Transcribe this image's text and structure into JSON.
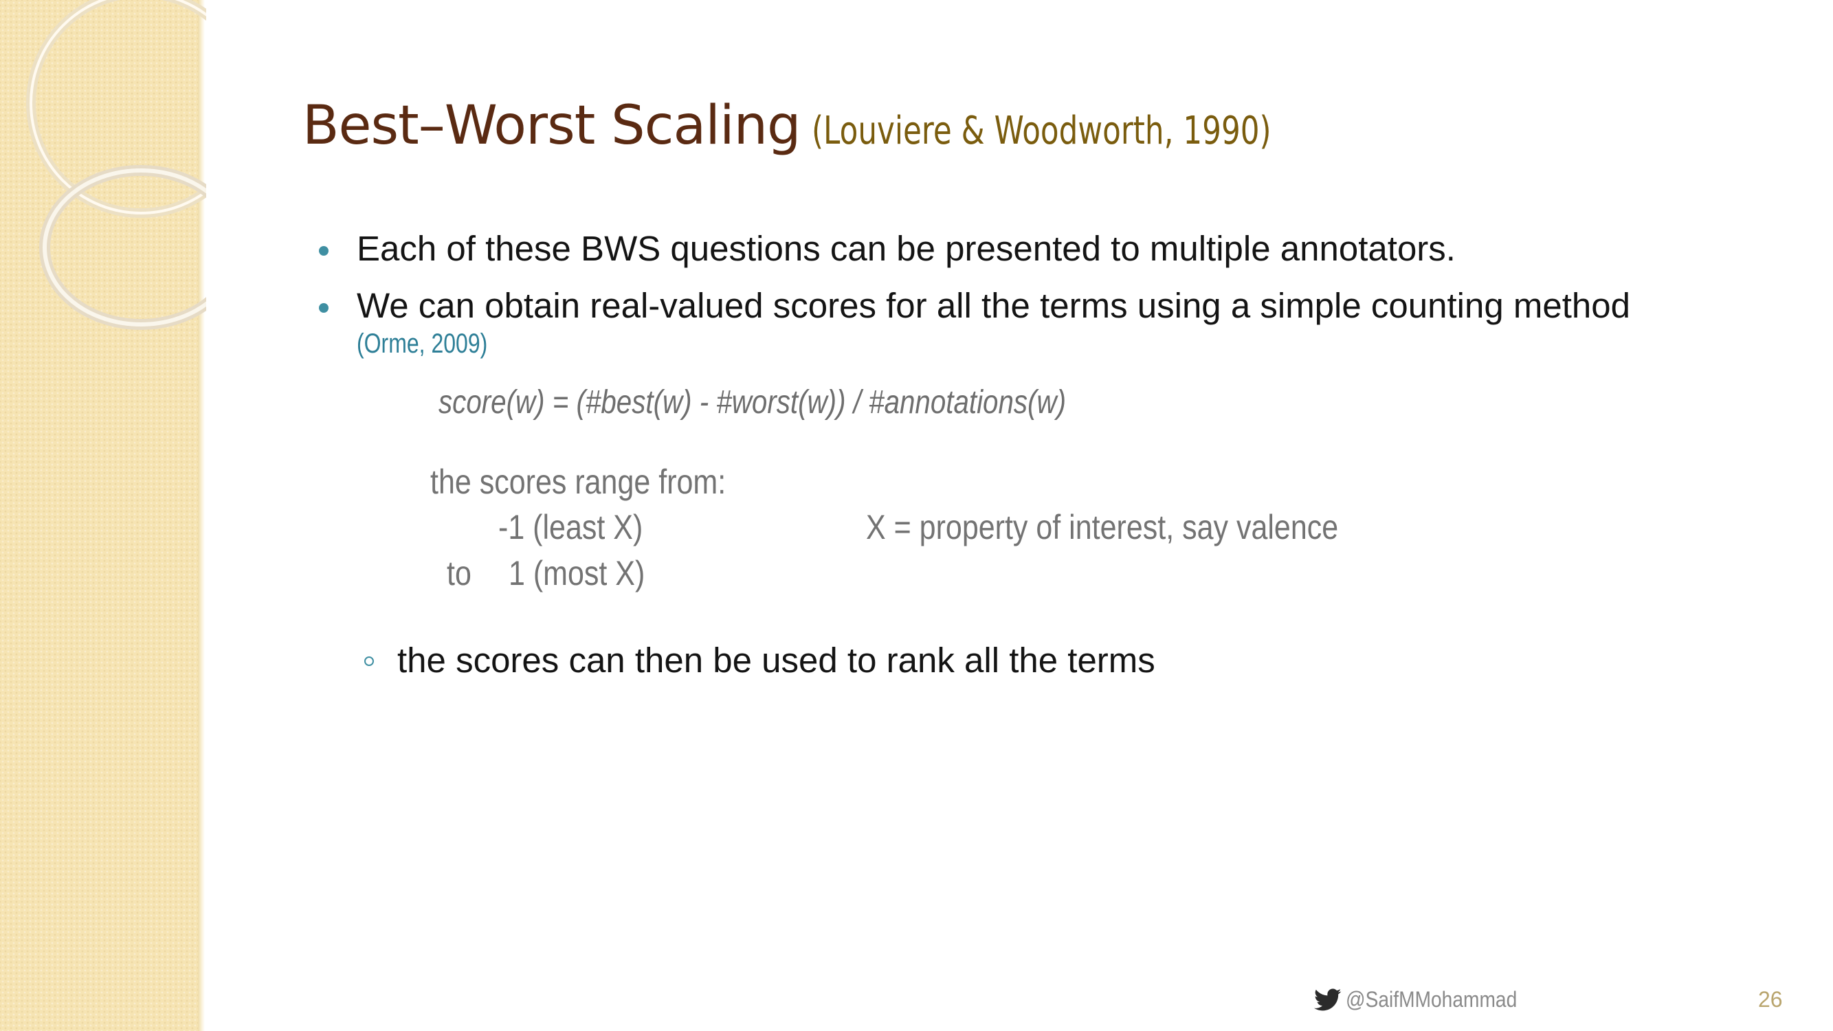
{
  "title": {
    "main": "Best–Worst Scaling",
    "citation": "(Louviere & Woodworth, 1990)"
  },
  "bullets": [
    {
      "text": "Each of these BWS questions can be presented to multiple annotators."
    },
    {
      "text": "We can obtain real-valued scores for all the terms using a simple counting method",
      "citation": "(Orme, 2009)"
    }
  ],
  "formula": "score(w) = (#best(w) - #worst(w)) / #annotations(w)",
  "range": {
    "intro": "the scores range from:",
    "low": "-1 (least X)",
    "to_word": "to",
    "high": "1 (most X)",
    "note": "X = property of interest, say valence"
  },
  "sub_bullet": "the scores can then be used to rank all the terms",
  "footer": {
    "handle": "@SaifMMohammad",
    "handle_icon": "twitter-bird-icon",
    "page_number": "26"
  },
  "colors": {
    "title": "#5a2a12",
    "title_citation": "#7a5c0e",
    "bullet": "#3f8fa2",
    "citation": "#2e7f97",
    "side_panel": "#f6e4b3"
  }
}
